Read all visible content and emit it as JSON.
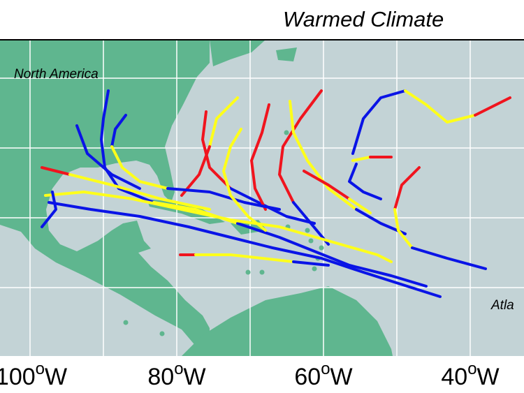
{
  "title": "Warmed Climate",
  "labels": {
    "continent": "North America",
    "ocean": "Atla"
  },
  "x_axis": [
    {
      "number": "100",
      "degree": "o",
      "hemisphere": "W"
    },
    {
      "number": "80",
      "degree": "o",
      "hemisphere": "W"
    },
    {
      "number": "60",
      "degree": "o",
      "hemisphere": "W"
    },
    {
      "number": "40",
      "degree": "o",
      "hemisphere": "W"
    }
  ]
}
